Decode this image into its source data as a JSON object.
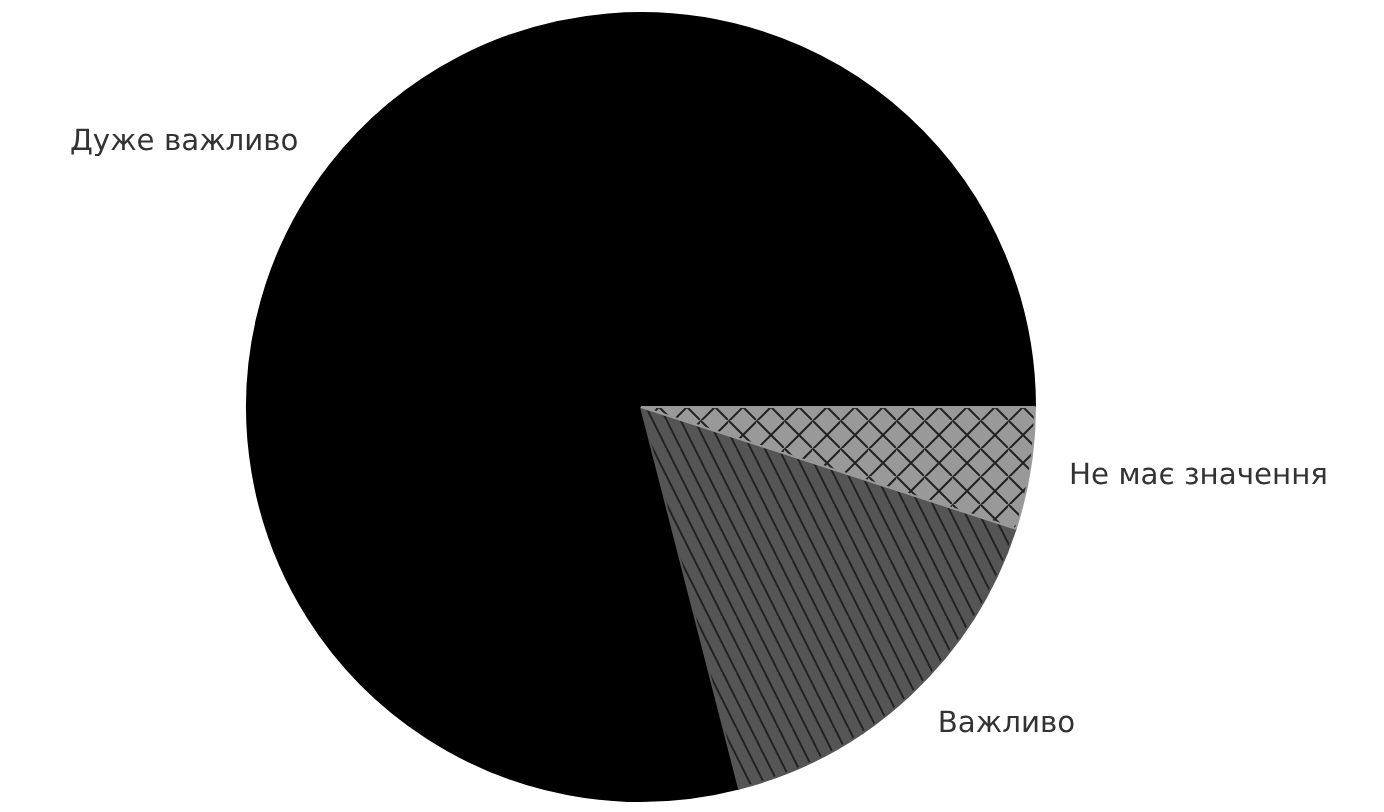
{
  "chart_data": {
    "type": "pie",
    "categories": [
      "Дуже важливо",
      "Важливо",
      "Не має значення"
    ],
    "values": [
      79,
      16,
      5
    ],
    "colors": [
      "#000000",
      "#555555",
      "#999999"
    ]
  }
}
